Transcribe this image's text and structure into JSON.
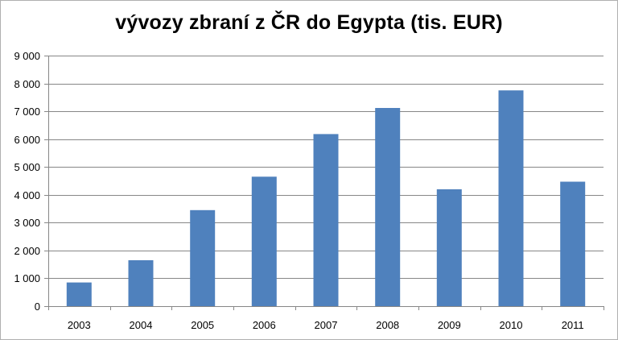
{
  "chart_data": {
    "type": "bar",
    "title": "vývozy zbraní z ČR do Egypta (tis. EUR)",
    "xlabel": "",
    "ylabel": "",
    "categories": [
      "2003",
      "2004",
      "2005",
      "2006",
      "2007",
      "2008",
      "2009",
      "2010",
      "2011"
    ],
    "values": [
      850,
      1650,
      3450,
      4650,
      6180,
      7120,
      4200,
      7750,
      4470
    ],
    "ylim": [
      0,
      9000
    ],
    "yticks": [
      0,
      1000,
      2000,
      3000,
      4000,
      5000,
      6000,
      7000,
      8000,
      9000
    ],
    "ytick_labels": [
      "0",
      "1 000",
      "2 000",
      "3 000",
      "4 000",
      "5 000",
      "6 000",
      "7 000",
      "8 000",
      "9 000"
    ],
    "grid": true,
    "legend": "none",
    "bar_color": "#4f81bd",
    "grid_color": "#878787"
  }
}
